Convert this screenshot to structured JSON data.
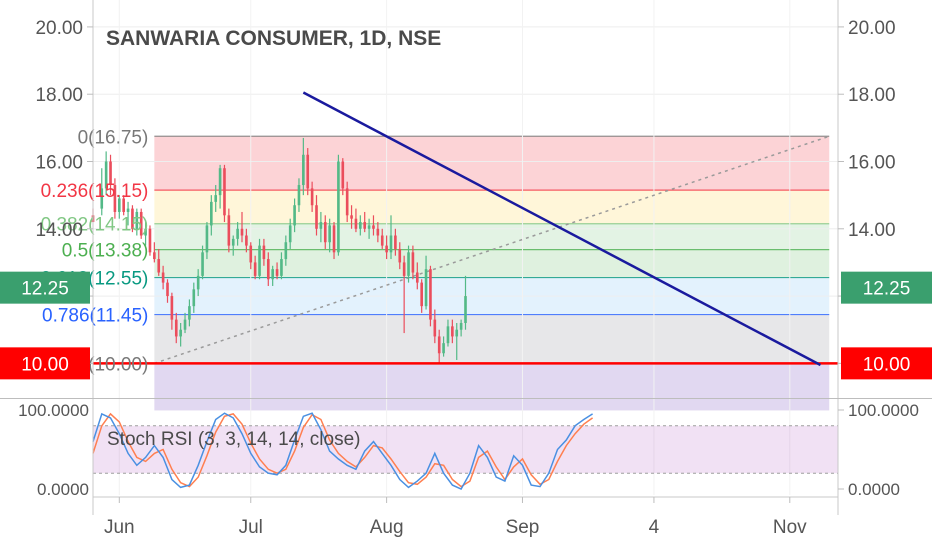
{
  "chart_data": {
    "type": "candlestick",
    "title": "SANWARIA CONSUMER, 1D, NSE",
    "ylim": [
      9.0,
      20.8
    ],
    "yticks": [
      10.0,
      12.0,
      14.0,
      16.0,
      18.0,
      20.0
    ],
    "ytick_labels": [
      "10.00",
      "12.00",
      "14.00",
      "16.00",
      "18.00",
      "20.00"
    ],
    "price_badges": [
      {
        "value": 12.25,
        "label": "12.25",
        "color": "#3a9f6e"
      },
      {
        "value": 10.0,
        "label": "10.00",
        "color": "#ff0000"
      }
    ],
    "xaxis_labels": [
      {
        "label": "Jun",
        "x": 0
      },
      {
        "label": "Jul",
        "x": 30
      },
      {
        "label": "Aug",
        "x": 61
      },
      {
        "label": "Sep",
        "x": 92
      },
      {
        "label": "4",
        "x": 122
      },
      {
        "label": "Nov",
        "x": 153
      }
    ],
    "x_range": [
      -6,
      164
    ],
    "candles": [
      [
        -6,
        14.4,
        14.6,
        14.2,
        14.2
      ],
      [
        -4,
        14.6,
        15.8,
        14.4,
        15.2
      ],
      [
        -3,
        15.2,
        16.3,
        15.0,
        16.0
      ],
      [
        -2,
        16.0,
        16.2,
        15.0,
        15.3
      ],
      [
        -1,
        15.3,
        15.5,
        14.3,
        14.5
      ],
      [
        0,
        14.5,
        15.0,
        14.3,
        14.9
      ],
      [
        1,
        14.9,
        15.0,
        14.4,
        14.5
      ],
      [
        2,
        14.5,
        14.8,
        14.1,
        14.6
      ],
      [
        3,
        14.6,
        14.7,
        13.9,
        14.0
      ],
      [
        4,
        14.0,
        14.6,
        13.8,
        14.5
      ],
      [
        5,
        14.5,
        14.6,
        13.7,
        13.8
      ],
      [
        6,
        13.8,
        14.2,
        13.5,
        14.0
      ],
      [
        7,
        14.0,
        14.1,
        13.2,
        13.3
      ],
      [
        8,
        13.3,
        13.6,
        13.0,
        13.1
      ],
      [
        9,
        13.1,
        13.4,
        12.6,
        12.7
      ],
      [
        10,
        12.7,
        12.9,
        12.2,
        12.4
      ],
      [
        11,
        12.4,
        12.5,
        11.8,
        12.0
      ],
      [
        12,
        12.0,
        12.1,
        11.0,
        11.3
      ],
      [
        13,
        11.3,
        11.5,
        10.6,
        10.8
      ],
      [
        14,
        10.8,
        11.2,
        10.5,
        11.0
      ],
      [
        15,
        11.0,
        11.5,
        10.9,
        11.3
      ],
      [
        16,
        11.3,
        11.9,
        11.1,
        11.7
      ],
      [
        17,
        11.7,
        12.4,
        11.5,
        12.2
      ],
      [
        18,
        12.2,
        12.8,
        12.0,
        12.6
      ],
      [
        19,
        12.6,
        13.5,
        12.5,
        13.3
      ],
      [
        20,
        13.3,
        14.2,
        13.1,
        14.1
      ],
      [
        21,
        14.1,
        15.0,
        13.8,
        14.8
      ],
      [
        22,
        14.8,
        15.3,
        14.5,
        15.0
      ],
      [
        23,
        15.0,
        15.9,
        14.6,
        15.8
      ],
      [
        24,
        15.8,
        15.9,
        14.2,
        14.4
      ],
      [
        25,
        14.4,
        14.6,
        13.3,
        13.5
      ],
      [
        26,
        13.5,
        13.8,
        13.2,
        13.7
      ],
      [
        27,
        13.7,
        14.2,
        13.5,
        14.0
      ],
      [
        28,
        14.0,
        14.5,
        13.6,
        13.8
      ],
      [
        29,
        13.8,
        14.0,
        13.3,
        13.5
      ],
      [
        30,
        13.5,
        13.6,
        12.8,
        13.0
      ],
      [
        31,
        13.0,
        13.2,
        12.5,
        12.6
      ],
      [
        32,
        12.6,
        13.7,
        12.5,
        13.5
      ],
      [
        33,
        13.5,
        13.7,
        12.9,
        13.1
      ],
      [
        34,
        13.1,
        13.3,
        12.3,
        12.5
      ],
      [
        35,
        12.5,
        12.9,
        12.3,
        12.8
      ],
      [
        36,
        12.8,
        13.0,
        12.5,
        12.6
      ],
      [
        37,
        12.6,
        13.3,
        12.5,
        13.1
      ],
      [
        38,
        13.1,
        13.8,
        12.9,
        13.6
      ],
      [
        39,
        13.6,
        14.3,
        13.4,
        14.1
      ],
      [
        40,
        14.1,
        14.9,
        13.9,
        14.7
      ],
      [
        41,
        14.7,
        15.5,
        14.5,
        15.3
      ],
      [
        42,
        15.3,
        16.7,
        15.0,
        16.2
      ],
      [
        43,
        16.2,
        16.4,
        15.0,
        15.2
      ],
      [
        44,
        15.2,
        15.4,
        14.5,
        14.7
      ],
      [
        45,
        14.7,
        15.0,
        13.8,
        14.0
      ],
      [
        46,
        14.0,
        14.5,
        13.6,
        14.2
      ],
      [
        47,
        14.2,
        14.4,
        13.4,
        13.6
      ],
      [
        48,
        13.6,
        14.3,
        13.3,
        14.1
      ],
      [
        49,
        14.1,
        14.2,
        13.1,
        13.3
      ],
      [
        50,
        13.3,
        16.2,
        13.2,
        16.0
      ],
      [
        51,
        16.0,
        16.1,
        15.0,
        15.2
      ],
      [
        52,
        15.2,
        15.4,
        14.2,
        14.4
      ],
      [
        53,
        14.4,
        14.7,
        14.0,
        14.3
      ],
      [
        54,
        14.3,
        14.6,
        13.9,
        14.0
      ],
      [
        55,
        14.0,
        14.4,
        13.8,
        14.2
      ],
      [
        56,
        14.2,
        14.5,
        13.9,
        14.0
      ],
      [
        57,
        14.0,
        14.3,
        13.7,
        14.1
      ],
      [
        58,
        14.1,
        14.4,
        13.8,
        14.0
      ],
      [
        59,
        14.0,
        14.2,
        13.6,
        13.8
      ],
      [
        60,
        13.8,
        14.0,
        13.4,
        13.5
      ],
      [
        61,
        13.5,
        13.8,
        13.1,
        13.3
      ],
      [
        62,
        13.3,
        14.4,
        13.1,
        13.8
      ],
      [
        63,
        13.8,
        14.0,
        13.2,
        13.4
      ],
      [
        64,
        13.4,
        13.6,
        12.8,
        13.0
      ],
      [
        65,
        13.0,
        13.2,
        10.9,
        12.6
      ],
      [
        66,
        12.6,
        13.5,
        12.4,
        13.3
      ],
      [
        67,
        13.3,
        13.5,
        12.5,
        12.7
      ],
      [
        68,
        12.7,
        13.0,
        12.2,
        12.4
      ],
      [
        69,
        12.4,
        12.5,
        11.5,
        11.7
      ],
      [
        70,
        11.7,
        13.2,
        11.6,
        12.8
      ],
      [
        71,
        12.8,
        12.9,
        11.1,
        11.3
      ],
      [
        72,
        11.3,
        11.6,
        10.6,
        10.8
      ],
      [
        73,
        10.8,
        11.0,
        10.0,
        10.3
      ],
      [
        74,
        10.3,
        10.8,
        10.2,
        10.6
      ],
      [
        75,
        10.6,
        11.3,
        10.5,
        11.1
      ],
      [
        76,
        11.1,
        11.3,
        10.6,
        10.8
      ],
      [
        77,
        10.8,
        11.2,
        10.1,
        11.0
      ],
      [
        78,
        11.0,
        11.3,
        10.8,
        11.2
      ],
      [
        79,
        11.2,
        12.6,
        11.0,
        12.0
      ]
    ],
    "fibonacci": [
      {
        "ratio": "0",
        "value": 16.75,
        "label": "0(16.75)",
        "color": "#787878",
        "fill": "rgba(242,54,69,0.22)"
      },
      {
        "ratio": "0.236",
        "value": 15.15,
        "label": "0.236(15.15)",
        "color": "#f23645",
        "fill": "rgba(255,224,130,0.30)"
      },
      {
        "ratio": "0.382",
        "value": 14.15,
        "label": "0.382(14.15)",
        "color": "#81c784",
        "fill": "rgba(129,199,132,0.22)"
      },
      {
        "ratio": "0.5",
        "value": 13.38,
        "label": "0.5(13.38)",
        "color": "#4caf50",
        "fill": "rgba(76,175,80,0.18)"
      },
      {
        "ratio": "0.618",
        "value": 12.55,
        "label": "0.618(12.55)",
        "color": "#089981",
        "fill": "rgba(100,181,246,0.18)"
      },
      {
        "ratio": "0.786",
        "value": 11.45,
        "label": "0.786(11.45)",
        "color": "#2962ff",
        "fill": "rgba(120,123,134,0.18)"
      },
      {
        "ratio": "1",
        "value": 10.0,
        "label": "1(10.00)",
        "color": "#787878",
        "fill": "rgba(103,58,183,0.20)"
      }
    ],
    "fib_x_range": [
      8,
      162
    ],
    "fib_bottom": 8.6,
    "fib_trend": {
      "from": [
        8,
        10.0
      ],
      "to": [
        162,
        16.75
      ]
    },
    "trendline": {
      "from": [
        42,
        18.05
      ],
      "to": [
        160,
        9.95
      ],
      "color": "#1a1a9e"
    },
    "support_line": {
      "value": 10.0,
      "color": "#ff0000"
    },
    "oscillator": {
      "title": "Stoch RSI (3, 3, 14, 14, close)",
      "ylim": [
        0,
        100
      ],
      "yticks": [
        "100.0000",
        "0.0000"
      ],
      "band": [
        20,
        80
      ],
      "k_color": "#4a90e2",
      "d_color": "#ff7f50",
      "k": [
        [
          -6,
          60
        ],
        [
          -4,
          95
        ],
        [
          -2,
          90
        ],
        [
          0,
          70
        ],
        [
          2,
          45
        ],
        [
          4,
          30
        ],
        [
          6,
          40
        ],
        [
          8,
          55
        ],
        [
          10,
          40
        ],
        [
          12,
          12
        ],
        [
          14,
          2
        ],
        [
          16,
          5
        ],
        [
          18,
          30
        ],
        [
          20,
          60
        ],
        [
          22,
          88
        ],
        [
          24,
          96
        ],
        [
          26,
          90
        ],
        [
          28,
          70
        ],
        [
          30,
          45
        ],
        [
          32,
          28
        ],
        [
          34,
          20
        ],
        [
          36,
          18
        ],
        [
          38,
          30
        ],
        [
          40,
          62
        ],
        [
          42,
          92
        ],
        [
          44,
          96
        ],
        [
          46,
          75
        ],
        [
          48,
          48
        ],
        [
          50,
          38
        ],
        [
          52,
          30
        ],
        [
          54,
          25
        ],
        [
          56,
          48
        ],
        [
          58,
          60
        ],
        [
          60,
          45
        ],
        [
          62,
          30
        ],
        [
          64,
          12
        ],
        [
          66,
          2
        ],
        [
          68,
          10
        ],
        [
          70,
          20
        ],
        [
          72,
          45
        ],
        [
          74,
          20
        ],
        [
          76,
          5
        ],
        [
          78,
          0
        ],
        [
          80,
          20
        ],
        [
          82,
          55
        ],
        [
          84,
          40
        ],
        [
          86,
          15
        ],
        [
          88,
          10
        ],
        [
          90,
          42
        ],
        [
          92,
          30
        ],
        [
          94,
          5
        ],
        [
          96,
          3
        ],
        [
          98,
          20
        ],
        [
          100,
          50
        ],
        [
          102,
          62
        ],
        [
          104,
          80
        ],
        [
          106,
          88
        ],
        [
          108,
          95
        ]
      ],
      "d": [
        [
          -6,
          45
        ],
        [
          -4,
          80
        ],
        [
          -2,
          95
        ],
        [
          0,
          85
        ],
        [
          2,
          60
        ],
        [
          4,
          40
        ],
        [
          6,
          35
        ],
        [
          8,
          45
        ],
        [
          10,
          50
        ],
        [
          12,
          25
        ],
        [
          14,
          8
        ],
        [
          16,
          3
        ],
        [
          18,
          15
        ],
        [
          20,
          42
        ],
        [
          22,
          72
        ],
        [
          24,
          92
        ],
        [
          26,
          95
        ],
        [
          28,
          82
        ],
        [
          30,
          58
        ],
        [
          32,
          38
        ],
        [
          34,
          25
        ],
        [
          36,
          20
        ],
        [
          38,
          25
        ],
        [
          40,
          48
        ],
        [
          42,
          78
        ],
        [
          44,
          94
        ],
        [
          46,
          88
        ],
        [
          48,
          62
        ],
        [
          50,
          45
        ],
        [
          52,
          35
        ],
        [
          54,
          28
        ],
        [
          56,
          40
        ],
        [
          58,
          55
        ],
        [
          60,
          52
        ],
        [
          62,
          38
        ],
        [
          64,
          22
        ],
        [
          66,
          8
        ],
        [
          68,
          6
        ],
        [
          70,
          15
        ],
        [
          72,
          32
        ],
        [
          74,
          30
        ],
        [
          76,
          12
        ],
        [
          78,
          3
        ],
        [
          80,
          10
        ],
        [
          82,
          40
        ],
        [
          84,
          48
        ],
        [
          86,
          28
        ],
        [
          88,
          12
        ],
        [
          90,
          28
        ],
        [
          92,
          38
        ],
        [
          94,
          18
        ],
        [
          96,
          6
        ],
        [
          98,
          12
        ],
        [
          100,
          35
        ],
        [
          102,
          55
        ],
        [
          104,
          70
        ],
        [
          106,
          82
        ],
        [
          108,
          90
        ]
      ]
    }
  }
}
